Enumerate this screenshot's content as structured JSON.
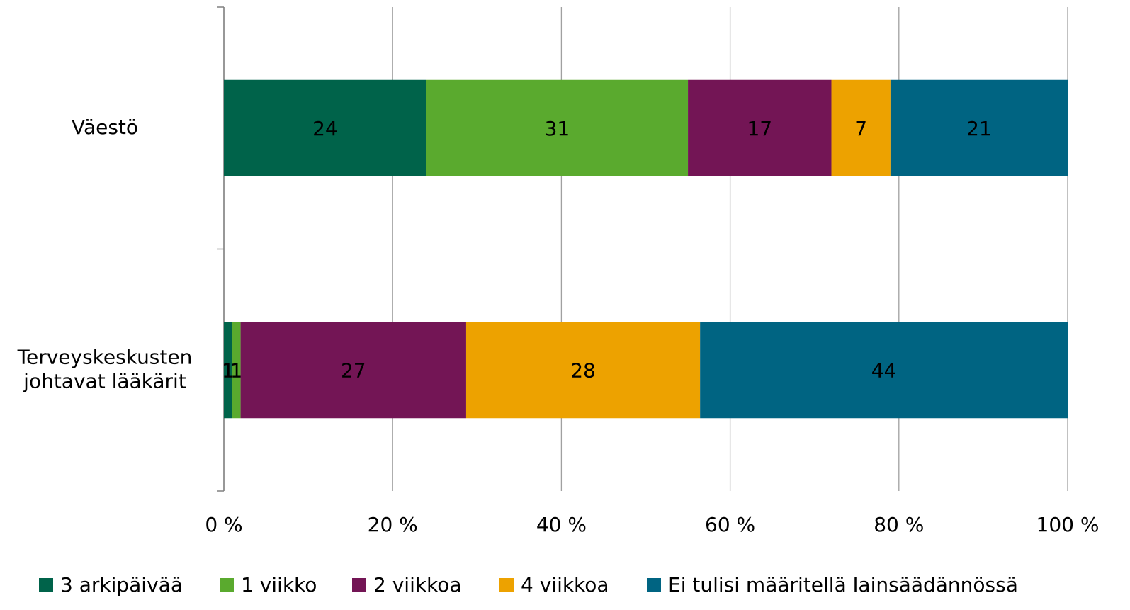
{
  "chart_data": {
    "type": "bar",
    "orientation": "horizontal",
    "stacking": "percent",
    "categories": [
      "Väestö",
      "Terveyskeskusten\njohtavat lääkärit"
    ],
    "series": [
      {
        "name": "3 arkipäivää",
        "color": "#00634a",
        "values": [
          24,
          1
        ]
      },
      {
        "name": "1 viikko",
        "color": "#5aaa2e",
        "values": [
          31,
          1
        ]
      },
      {
        "name": "2 viikkoa",
        "color": "#731555",
        "values": [
          17,
          27
        ]
      },
      {
        "name": "4 viikkoa",
        "color": "#eda200",
        "values": [
          7,
          28
        ]
      },
      {
        "name": "Ei tulisi määritellä lainsäädännössä",
        "color": "#006482",
        "values": [
          21,
          44
        ]
      }
    ],
    "xlim": [
      0,
      100
    ],
    "xticks": [
      {
        "value": 0,
        "label": "0 %"
      },
      {
        "value": 20,
        "label": "20 %"
      },
      {
        "value": 40,
        "label": "40 %"
      },
      {
        "value": 60,
        "label": "60 %"
      },
      {
        "value": 80,
        "label": "80 %"
      },
      {
        "value": 100,
        "label": "100 %"
      }
    ],
    "grid": true,
    "legend": "bottom"
  }
}
